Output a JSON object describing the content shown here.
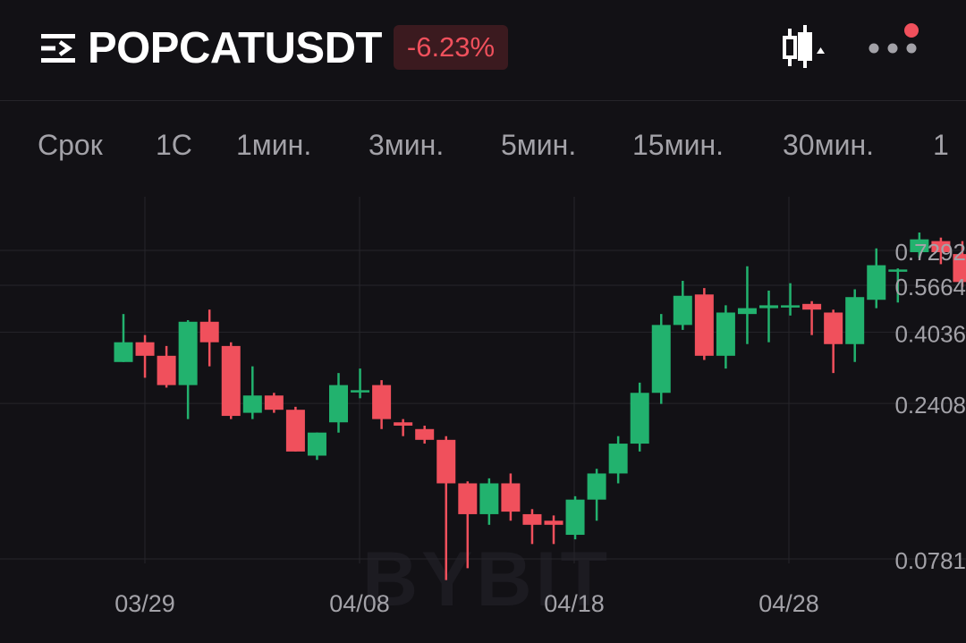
{
  "header": {
    "symbol": "POPCATUSDT",
    "change": "-6.23%",
    "menu_icon": "hamburger-list-icon",
    "chart_type_icon": "candlestick-icon",
    "more_icon": "more-dots-icon",
    "notification_dot_color": "#f0505c"
  },
  "timeframes": [
    "Срок",
    "1С",
    "1мин.",
    "3мин.",
    "5мин.",
    "15мин.",
    "30мин.",
    "1"
  ],
  "watermark": "BYBIT",
  "colors": {
    "up": "#22b26e",
    "down": "#f0505c",
    "background": "#121115",
    "grid": "#26252a",
    "axis_text": "#a3a2a8"
  },
  "chart_data": {
    "type": "candlestick",
    "title": "",
    "y_scale": "log",
    "y_ticks": [
      "0.7292",
      "0.5664",
      "0.4036",
      "0.2408",
      "0.0781"
    ],
    "x_ticks": [
      "03/29",
      "04/08",
      "04/18",
      "04/28"
    ],
    "candles": [
      {
        "date": "03/28",
        "open": 0.325,
        "high": 0.46,
        "low": 0.325,
        "close": 0.375
      },
      {
        "date": "03/29",
        "open": 0.375,
        "high": 0.395,
        "low": 0.29,
        "close": 0.34
      },
      {
        "date": "03/30",
        "open": 0.34,
        "high": 0.365,
        "low": 0.27,
        "close": 0.275
      },
      {
        "date": "03/31",
        "open": 0.275,
        "high": 0.44,
        "low": 0.215,
        "close": 0.435
      },
      {
        "date": "04/01",
        "open": 0.435,
        "high": 0.475,
        "low": 0.315,
        "close": 0.375
      },
      {
        "date": "04/02",
        "open": 0.365,
        "high": 0.375,
        "low": 0.215,
        "close": 0.22
      },
      {
        "date": "04/03",
        "open": 0.225,
        "high": 0.315,
        "low": 0.215,
        "close": 0.255
      },
      {
        "date": "04/04",
        "open": 0.255,
        "high": 0.26,
        "low": 0.225,
        "close": 0.23
      },
      {
        "date": "04/05",
        "open": 0.23,
        "high": 0.235,
        "low": 0.17,
        "close": 0.17
      },
      {
        "date": "04/06",
        "open": 0.165,
        "high": 0.195,
        "low": 0.16,
        "close": 0.195
      },
      {
        "date": "04/07",
        "open": 0.21,
        "high": 0.3,
        "low": 0.195,
        "close": 0.275
      },
      {
        "date": "04/08",
        "open": 0.265,
        "high": 0.31,
        "low": 0.25,
        "close": 0.265
      },
      {
        "date": "04/09",
        "open": 0.275,
        "high": 0.285,
        "low": 0.2,
        "close": 0.215
      },
      {
        "date": "04/10",
        "open": 0.21,
        "high": 0.215,
        "low": 0.19,
        "close": 0.205
      },
      {
        "date": "04/11",
        "open": 0.2,
        "high": 0.205,
        "low": 0.18,
        "close": 0.185
      },
      {
        "date": "04/12",
        "open": 0.185,
        "high": 0.19,
        "low": 0.067,
        "close": 0.135
      },
      {
        "date": "04/13",
        "open": 0.135,
        "high": 0.137,
        "low": 0.073,
        "close": 0.108
      },
      {
        "date": "04/14",
        "open": 0.108,
        "high": 0.14,
        "low": 0.1,
        "close": 0.135
      },
      {
        "date": "04/15",
        "open": 0.135,
        "high": 0.145,
        "low": 0.103,
        "close": 0.11
      },
      {
        "date": "04/16",
        "open": 0.108,
        "high": 0.112,
        "low": 0.087,
        "close": 0.1
      },
      {
        "date": "04/17",
        "open": 0.103,
        "high": 0.107,
        "low": 0.087,
        "close": 0.1
      },
      {
        "date": "04/18",
        "open": 0.093,
        "high": 0.123,
        "low": 0.09,
        "close": 0.12
      },
      {
        "date": "04/19",
        "open": 0.12,
        "high": 0.15,
        "low": 0.103,
        "close": 0.145
      },
      {
        "date": "04/20",
        "open": 0.145,
        "high": 0.19,
        "low": 0.135,
        "close": 0.18
      },
      {
        "date": "04/21",
        "open": 0.18,
        "high": 0.28,
        "low": 0.17,
        "close": 0.26
      },
      {
        "date": "04/22",
        "open": 0.26,
        "high": 0.46,
        "low": 0.24,
        "close": 0.425
      },
      {
        "date": "04/23",
        "open": 0.425,
        "high": 0.585,
        "low": 0.41,
        "close": 0.525
      },
      {
        "date": "04/24",
        "open": 0.53,
        "high": 0.555,
        "low": 0.33,
        "close": 0.34
      },
      {
        "date": "04/25",
        "open": 0.34,
        "high": 0.49,
        "low": 0.31,
        "close": 0.465
      },
      {
        "date": "04/26",
        "open": 0.46,
        "high": 0.65,
        "low": 0.37,
        "close": 0.48
      },
      {
        "date": "04/27",
        "open": 0.48,
        "high": 0.545,
        "low": 0.375,
        "close": 0.49
      },
      {
        "date": "04/28",
        "open": 0.49,
        "high": 0.575,
        "low": 0.455,
        "close": 0.49
      },
      {
        "date": "04/29",
        "open": 0.495,
        "high": 0.505,
        "low": 0.395,
        "close": 0.475
      },
      {
        "date": "04/30",
        "open": 0.465,
        "high": 0.475,
        "low": 0.3,
        "close": 0.37
      },
      {
        "date": "05/01",
        "open": 0.37,
        "high": 0.55,
        "low": 0.325,
        "close": 0.52
      },
      {
        "date": "05/02",
        "open": 0.51,
        "high": 0.74,
        "low": 0.48,
        "close": 0.655
      },
      {
        "date": "05/03",
        "open": 0.63,
        "high": 0.64,
        "low": 0.5,
        "close": 0.635
      },
      {
        "date": "05/04",
        "open": 0.72,
        "high": 0.83,
        "low": 0.69,
        "close": 0.79
      },
      {
        "date": "05/05",
        "open": 0.78,
        "high": 0.8,
        "low": 0.66,
        "close": 0.72
      },
      {
        "date": "05/06",
        "open": 0.71,
        "high": 0.78,
        "low": 0.56,
        "close": 0.58
      }
    ]
  }
}
